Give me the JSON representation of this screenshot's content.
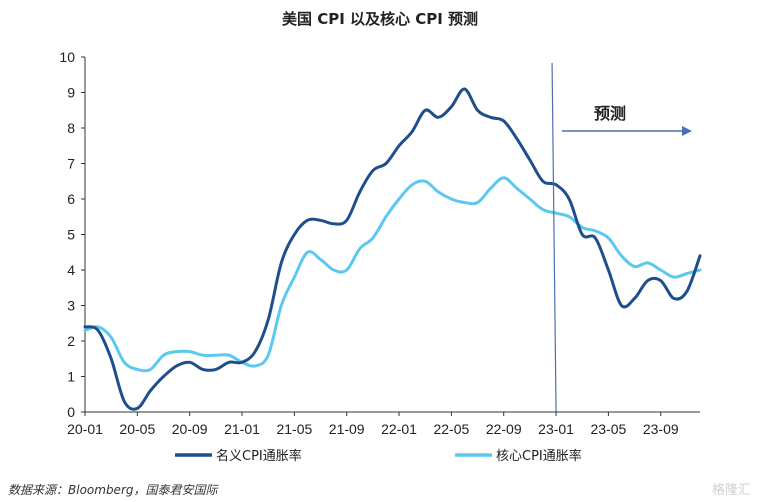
{
  "chart_data": {
    "type": "line",
    "title": "美国 CPI 以及核心 CPI 预测",
    "xlabel": "",
    "ylabel": "",
    "ylim": [
      0,
      10
    ],
    "yticks": [
      0,
      1,
      2,
      3,
      4,
      5,
      6,
      7,
      8,
      9,
      10
    ],
    "xticks": [
      "20-01",
      "20-05",
      "20-09",
      "21-01",
      "21-05",
      "21-09",
      "22-01",
      "22-05",
      "22-09",
      "23-01",
      "23-05",
      "23-09"
    ],
    "x": [
      "20-01",
      "20-02",
      "20-03",
      "20-04",
      "20-05",
      "20-06",
      "20-07",
      "20-08",
      "20-09",
      "20-10",
      "20-11",
      "20-12",
      "21-01",
      "21-02",
      "21-03",
      "21-04",
      "21-05",
      "21-06",
      "21-07",
      "21-08",
      "21-09",
      "21-10",
      "21-11",
      "21-12",
      "22-01",
      "22-02",
      "22-03",
      "22-04",
      "22-05",
      "22-06",
      "22-07",
      "22-08",
      "22-09",
      "22-10",
      "22-11",
      "22-12",
      "23-01",
      "23-02",
      "23-03",
      "23-04",
      "23-05",
      "23-06",
      "23-07",
      "23-08",
      "23-09",
      "23-10",
      "23-11",
      "23-12"
    ],
    "grid": false,
    "legend_position": "bottom",
    "series": [
      {
        "name": "名义CPI通胀率",
        "color": "#1f4e8c",
        "values": [
          2.4,
          2.3,
          1.5,
          0.3,
          0.1,
          0.6,
          1.0,
          1.3,
          1.4,
          1.2,
          1.2,
          1.4,
          1.4,
          1.7,
          2.6,
          4.2,
          5.0,
          5.4,
          5.4,
          5.3,
          5.4,
          6.2,
          6.8,
          7.0,
          7.5,
          7.9,
          8.5,
          8.3,
          8.6,
          9.1,
          8.5,
          8.3,
          8.2,
          7.7,
          7.1,
          6.5,
          6.4,
          6.0,
          5.0,
          4.9,
          4.0,
          3.0,
          3.2,
          3.7,
          3.7,
          3.2,
          3.4,
          4.4
        ]
      },
      {
        "name": "核心CPI通胀率",
        "color": "#5bc8f0",
        "values": [
          2.3,
          2.4,
          2.1,
          1.4,
          1.2,
          1.2,
          1.6,
          1.7,
          1.7,
          1.6,
          1.6,
          1.6,
          1.4,
          1.3,
          1.6,
          3.0,
          3.8,
          4.5,
          4.3,
          4.0,
          4.0,
          4.6,
          4.9,
          5.5,
          6.0,
          6.4,
          6.5,
          6.2,
          6.0,
          5.9,
          5.9,
          6.3,
          6.6,
          6.3,
          6.0,
          5.7,
          5.6,
          5.5,
          5.2,
          5.1,
          4.9,
          4.4,
          4.1,
          4.2,
          4.0,
          3.8,
          3.9,
          4.0
        ]
      }
    ],
    "forecast_start": "23-01",
    "annotation": "预测"
  },
  "source": "数据来源：Bloomberg，国泰君安国际",
  "watermark": "格隆汇"
}
